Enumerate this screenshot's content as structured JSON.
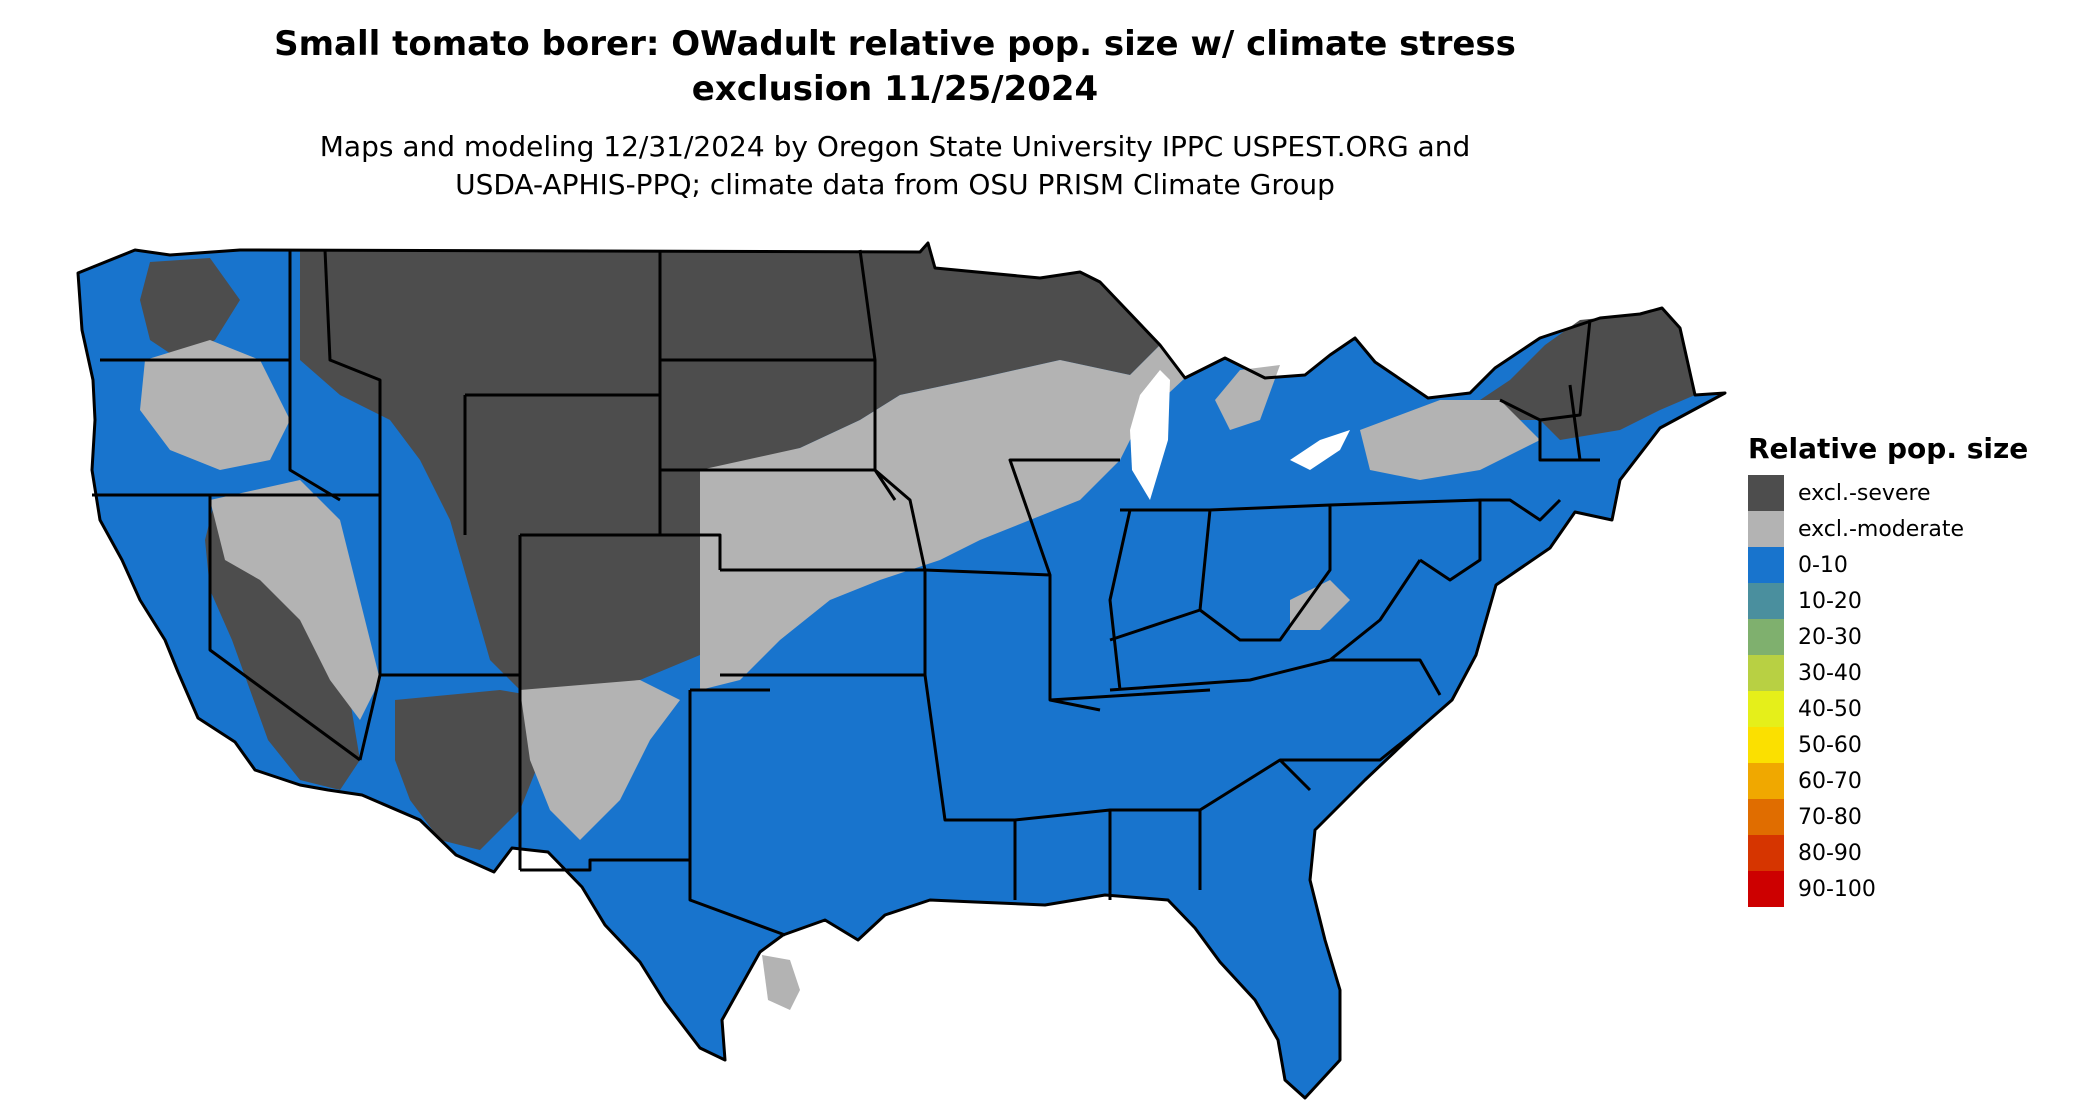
{
  "title_line1": "Small tomato borer: OWadult relative pop. size w/ climate stress",
  "title_line2": "exclusion 11/25/2024",
  "subtitle_line1": "Maps and modeling 12/31/2024 by Oregon State University IPPC USPEST.ORG and",
  "subtitle_line2": "USDA-APHIS-PPQ; climate data from OSU PRISM Climate Group",
  "colors": {
    "excl_severe": "#4d4d4d",
    "excl_moderate": "#b3b3b3",
    "range_0_10": "#1874cd",
    "state_border": "#000000"
  },
  "legend": {
    "title": "Relative pop. size",
    "items": [
      {
        "label": "excl.-severe",
        "color": "#4d4d4d"
      },
      {
        "label": "excl.-moderate",
        "color": "#b3b3b3"
      },
      {
        "label": "0-10",
        "color": "#1874cd"
      },
      {
        "label": "10-20",
        "color": "#4a8f9e"
      },
      {
        "label": "20-30",
        "color": "#7fb06e"
      },
      {
        "label": "30-40",
        "color": "#b8d043"
      },
      {
        "label": "40-50",
        "color": "#e5ef1a"
      },
      {
        "label": "50-60",
        "color": "#fbe000"
      },
      {
        "label": "60-70",
        "color": "#f0a800"
      },
      {
        "label": "70-80",
        "color": "#e06d00"
      },
      {
        "label": "80-90",
        "color": "#d63500"
      },
      {
        "label": "90-100",
        "color": "#cd0000"
      }
    ]
  }
}
